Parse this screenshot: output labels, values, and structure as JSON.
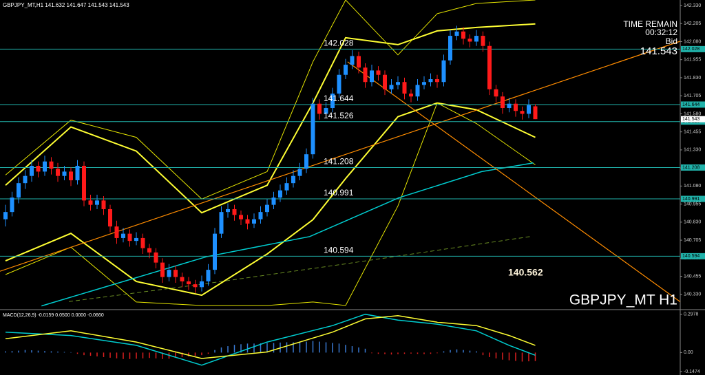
{
  "chart_data": [
    {
      "type": "candlestick",
      "title": "GBPJPY_MT,H1  141.632 141.647 141.543 141.543",
      "watermark": "GBPJPY_MT H1",
      "time_remain_label": "TIME REMAIN",
      "time_remain": "00:32:12",
      "bid_label": "Bid",
      "bid": 141.543,
      "annotation": 140.562,
      "up_color": "#1e90ff",
      "down_color": "#ff1a1a",
      "level_color": "#20b2aa",
      "levels": [
        142.028,
        141.644,
        141.526,
        141.208,
        140.991,
        140.594
      ],
      "ylim": [
        140.229,
        142.368
      ],
      "yticks": [
        {
          "value": 142.33,
          "label": "142.330"
        },
        142.205,
        {
          "value": 142.08,
          "label": "142.080"
        },
        141.955,
        {
          "value": 141.83,
          "label": "141.830"
        },
        141.705,
        {
          "value": 141.58,
          "label": "141.580"
        },
        141.455,
        {
          "value": 141.33,
          "label": "141.330"
        },
        141.205,
        {
          "value": 141.08,
          "label": "141.080"
        },
        140.955,
        {
          "value": 140.83,
          "label": "140.830"
        },
        140.705,
        {
          "value": 140.58,
          "label": "140.580"
        },
        140.455,
        {
          "value": 140.33,
          "label": "140.330"
        }
      ],
      "ohlc": [
        [
          140.85,
          140.95,
          140.8,
          140.9
        ],
        [
          140.9,
          141.04,
          140.87,
          141.0
        ],
        [
          141.0,
          141.14,
          140.96,
          141.1
        ],
        [
          141.1,
          141.19,
          141.06,
          141.15
        ],
        [
          141.15,
          141.26,
          141.11,
          141.22
        ],
        [
          141.22,
          141.25,
          141.14,
          141.18
        ],
        [
          141.18,
          141.29,
          141.15,
          141.25
        ],
        [
          141.25,
          141.28,
          141.16,
          141.2
        ],
        [
          141.2,
          141.24,
          141.11,
          141.15
        ],
        [
          141.15,
          141.22,
          141.12,
          141.18
        ],
        [
          141.18,
          141.21,
          141.08,
          141.12
        ],
        [
          141.12,
          141.26,
          141.09,
          141.22
        ],
        [
          141.22,
          141.25,
          140.94,
          140.98
        ],
        [
          140.98,
          141.02,
          140.91,
          140.95
        ],
        [
          140.95,
          141.02,
          140.92,
          140.98
        ],
        [
          140.98,
          141.01,
          140.88,
          140.92
        ],
        [
          140.92,
          140.95,
          140.76,
          140.8
        ],
        [
          140.8,
          140.84,
          140.68,
          140.72
        ],
        [
          140.72,
          140.79,
          140.69,
          140.75
        ],
        [
          140.75,
          140.78,
          140.66,
          140.7
        ],
        [
          140.7,
          140.76,
          140.67,
          140.72
        ],
        [
          140.72,
          140.75,
          140.61,
          140.65
        ],
        [
          140.65,
          140.68,
          140.58,
          140.62
        ],
        [
          140.62,
          140.65,
          140.51,
          140.55
        ],
        [
          140.55,
          140.58,
          140.41,
          140.45
        ],
        [
          140.45,
          140.54,
          140.42,
          140.5
        ],
        [
          140.5,
          140.53,
          140.41,
          140.45
        ],
        [
          140.45,
          140.48,
          140.38,
          140.42
        ],
        [
          140.42,
          140.45,
          140.36,
          140.4
        ],
        [
          140.4,
          140.43,
          140.34,
          140.38
        ],
        [
          140.38,
          140.46,
          140.35,
          140.42
        ],
        [
          140.42,
          140.54,
          140.39,
          140.5
        ],
        [
          140.5,
          140.79,
          140.47,
          140.75
        ],
        [
          140.75,
          140.94,
          140.72,
          140.9
        ],
        [
          140.9,
          140.96,
          140.86,
          140.92
        ],
        [
          140.92,
          140.95,
          140.84,
          140.88
        ],
        [
          140.88,
          140.91,
          140.81,
          140.85
        ],
        [
          140.85,
          140.88,
          140.78,
          140.82
        ],
        [
          140.82,
          140.89,
          140.79,
          140.85
        ],
        [
          140.85,
          140.94,
          140.82,
          140.9
        ],
        [
          140.9,
          140.99,
          140.87,
          140.95
        ],
        [
          140.95,
          141.04,
          140.92,
          141.0
        ],
        [
          141.0,
          141.09,
          140.97,
          141.05
        ],
        [
          141.05,
          141.14,
          141.02,
          141.1
        ],
        [
          141.1,
          141.19,
          141.07,
          141.15
        ],
        [
          141.15,
          141.24,
          141.12,
          141.2
        ],
        [
          141.2,
          141.34,
          141.17,
          141.3
        ],
        [
          141.3,
          141.69,
          141.27,
          141.65
        ],
        [
          141.65,
          141.68,
          141.54,
          141.58
        ],
        [
          141.58,
          141.66,
          141.55,
          141.62
        ],
        [
          141.62,
          141.76,
          141.59,
          141.72
        ],
        [
          141.72,
          141.89,
          141.69,
          141.85
        ],
        [
          141.85,
          141.96,
          141.82,
          141.92
        ],
        [
          141.92,
          142.02,
          141.89,
          141.98
        ],
        [
          141.98,
          142.01,
          141.86,
          141.9
        ],
        [
          141.9,
          141.93,
          141.76,
          141.8
        ],
        [
          141.8,
          141.92,
          141.77,
          141.88
        ],
        [
          141.88,
          141.91,
          141.81,
          141.85
        ],
        [
          141.85,
          141.88,
          141.71,
          141.75
        ],
        [
          141.75,
          141.82,
          141.72,
          141.78
        ],
        [
          141.78,
          141.84,
          141.75,
          141.8
        ],
        [
          141.8,
          141.83,
          141.68,
          141.72
        ],
        [
          141.72,
          141.75,
          141.66,
          141.7
        ],
        [
          141.7,
          141.82,
          141.67,
          141.78
        ],
        [
          141.78,
          141.84,
          141.75,
          141.8
        ],
        [
          141.8,
          141.86,
          141.77,
          141.82
        ],
        [
          141.82,
          141.85,
          141.76,
          141.8
        ],
        [
          141.8,
          141.99,
          141.77,
          141.95
        ],
        [
          141.95,
          142.16,
          141.92,
          142.12
        ],
        [
          142.12,
          142.19,
          142.09,
          142.15
        ],
        [
          142.15,
          142.18,
          142.06,
          142.1
        ],
        [
          142.1,
          142.13,
          142.04,
          142.08
        ],
        [
          142.08,
          142.16,
          142.05,
          142.12
        ],
        [
          142.12,
          142.15,
          142.01,
          142.05
        ],
        [
          142.05,
          142.08,
          141.71,
          141.75
        ],
        [
          141.75,
          141.78,
          141.66,
          141.7
        ],
        [
          141.7,
          141.73,
          141.58,
          141.62
        ],
        [
          141.62,
          141.69,
          141.59,
          141.65
        ],
        [
          141.65,
          141.68,
          141.56,
          141.6
        ],
        [
          141.6,
          141.63,
          141.54,
          141.58
        ],
        [
          141.58,
          141.68,
          141.55,
          141.64
        ],
        [
          141.632,
          141.647,
          141.543,
          141.543
        ]
      ],
      "series": [
        {
          "color": "#ffff33",
          "width": 2,
          "x": [
            0,
            10,
            20,
            30,
            40,
            47,
            52,
            60,
            66,
            72,
            81
          ],
          "values": [
            141.085,
            141.489,
            141.322,
            140.895,
            141.085,
            141.655,
            142.107,
            142.059,
            142.154,
            142.178,
            142.202
          ]
        },
        {
          "color": "#ffff33",
          "width": 2,
          "x": [
            0,
            10,
            20,
            30,
            40,
            47,
            52,
            60,
            66,
            72,
            81
          ],
          "values": [
            140.562,
            140.752,
            140.419,
            140.324,
            140.609,
            140.847,
            141.132,
            141.56,
            141.655,
            141.608,
            141.417
          ]
        },
        {
          "color": "#e6e600",
          "width": 1,
          "x": [
            0,
            10,
            20,
            30,
            40,
            47,
            52,
            60,
            66,
            72,
            81
          ],
          "values": [
            141.156,
            141.536,
            141.417,
            140.99,
            141.18,
            141.94,
            142.368,
            141.988,
            142.273,
            142.344,
            142.368
          ]
        },
        {
          "color": "#e6e600",
          "width": 1,
          "x": [
            0,
            10,
            20,
            30,
            40,
            47,
            52,
            60,
            66,
            72,
            81
          ],
          "values": [
            140.467,
            140.657,
            140.277,
            140.253,
            140.253,
            140.277,
            140.253,
            140.942,
            141.655,
            141.513,
            141.227
          ]
        },
        {
          "color": "#00ced1",
          "width": 1.5,
          "x": [
            5.5,
            30.7,
            46.5,
            60.2,
            72.8,
            80.7
          ],
          "values": [
            140.25,
            140.59,
            140.73,
            141.0,
            141.18,
            141.24
          ]
        },
        {
          "color": "#6b8e23",
          "width": 1,
          "dash": true,
          "x": [
            9.7,
            30,
            51.8,
            80.2
          ],
          "values": [
            140.28,
            140.4,
            140.54,
            140.73
          ]
        },
        {
          "color": "#ff8c00",
          "width": 1.2,
          "x": [
            -0.84,
            103.2
          ],
          "values": [
            140.49,
            142.083
          ]
        },
        {
          "color": "#ff8c00",
          "width": 1.2,
          "x": [
            52.3,
            103.2
          ],
          "values": [
            141.94,
            140.277
          ]
        }
      ]
    },
    {
      "type": "macd",
      "title": "MACD(12,26,9) -0.0159 0.0500 0.0000 -0.0660",
      "up_color": "#3a7bd5",
      "down_color": "#e02020",
      "ylim": [
        -0.1745,
        0.3234
      ],
      "yticks": [
        0.2978,
        {
          "value": 0,
          "label": "0.00"
        },
        -0.1474
      ],
      "histogram": [
        0.01,
        0.012,
        0.015,
        0.02,
        0.018,
        0.015,
        0.012,
        0.01,
        0.008,
        0.005,
        0.003,
        -0.01,
        -0.02,
        -0.025,
        -0.03,
        -0.035,
        -0.04,
        -0.045,
        -0.05,
        -0.05,
        -0.048,
        -0.045,
        -0.042,
        -0.045,
        -0.05,
        -0.048,
        -0.04,
        -0.035,
        -0.03,
        -0.025,
        -0.02,
        -0.01,
        0.02,
        0.04,
        0.05,
        0.06,
        0.065,
        0.07,
        0.07,
        0.072,
        0.075,
        0.075,
        0.078,
        0.08,
        0.08,
        0.082,
        0.085,
        0.09,
        0.085,
        0.08,
        0.075,
        0.07,
        0.06,
        0.05,
        0.04,
        0.03,
        -0.005,
        -0.01,
        -0.012,
        -0.015,
        -0.012,
        -0.01,
        -0.008,
        -0.01,
        -0.012,
        -0.01,
        -0.005,
        0.01,
        0.02,
        0.025,
        0.02,
        0.015,
        0.01,
        -0.02,
        -0.035,
        -0.045,
        -0.055,
        -0.06,
        -0.065,
        -0.07,
        -0.068,
        -0.066
      ],
      "series": [
        {
          "color": "#00ced1",
          "width": 1.5,
          "x": [
            0,
            10,
            20,
            30,
            40,
            50,
            55,
            60,
            66,
            72,
            77,
            81
          ],
          "values": [
            0.159,
            0.133,
            0.056,
            -0.098,
            0.082,
            0.21,
            0.298,
            0.252,
            0.221,
            0.169,
            0.056,
            -0.021
          ]
        },
        {
          "color": "#ffff33",
          "width": 1.5,
          "x": [
            0,
            10,
            20,
            30,
            40,
            50,
            55,
            60,
            66,
            72,
            77,
            81
          ],
          "values": [
            0.108,
            0.169,
            0.082,
            -0.046,
            0.005,
            0.159,
            0.262,
            0.287,
            0.236,
            0.21,
            0.133,
            0.056
          ]
        }
      ]
    }
  ]
}
